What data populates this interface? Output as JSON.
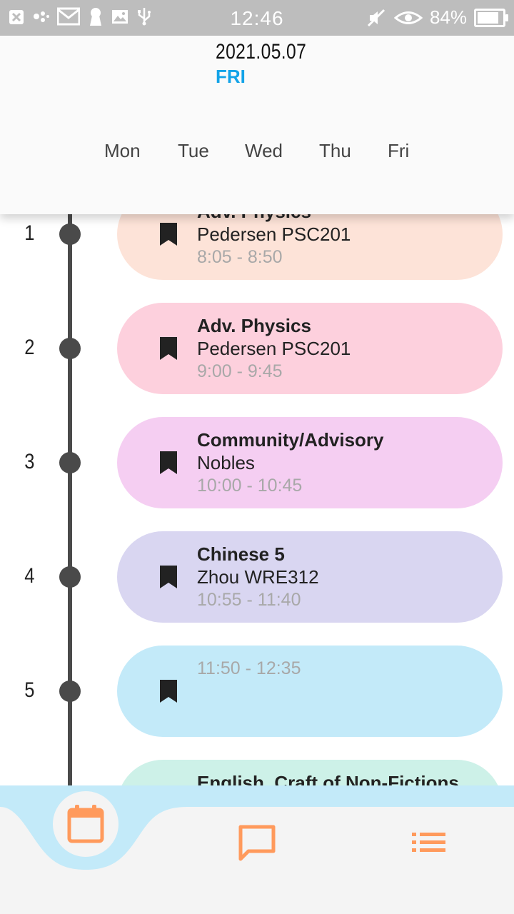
{
  "status_bar": {
    "time": "12:46",
    "battery_text": "84%",
    "battery_level": 0.84
  },
  "header": {
    "date": "2021.05.07",
    "day_of_week": "FRI",
    "weekdays": [
      "Mon",
      "Tue",
      "Wed",
      "Thu",
      "Fri"
    ]
  },
  "periods": [
    {
      "number": "1",
      "course": "Adv. Physics",
      "teacher": "Pedersen PSC201",
      "time": "8:05 - 8:50",
      "color": "#fde3d8"
    },
    {
      "number": "2",
      "course": "Adv. Physics",
      "teacher": "Pedersen PSC201",
      "time": "9:00 - 9:45",
      "color": "#fdd0dd"
    },
    {
      "number": "3",
      "course": "Community/Advisory",
      "teacher": "Nobles",
      "time": "10:00 - 10:45",
      "color": "#f5cef2"
    },
    {
      "number": "4",
      "course": "Chinese 5",
      "teacher": "Zhou WRE312",
      "time": "10:55 - 11:40",
      "color": "#d9d6f1"
    },
    {
      "number": "5",
      "course": "",
      "teacher": "",
      "time": "11:50 - 12:35",
      "color": "#c3eaf9"
    },
    {
      "number": "",
      "course": "English, Craft of Non-Fictions",
      "teacher": "",
      "time": "",
      "color": "#cdf1e8"
    }
  ],
  "bottom_nav": {
    "items": [
      {
        "name": "calendar-icon",
        "active": true
      },
      {
        "name": "chat-icon",
        "active": false
      },
      {
        "name": "list-icon",
        "active": false
      }
    ],
    "accent_color": "#ff9a5c",
    "wave_color": "#c3eaf9"
  }
}
